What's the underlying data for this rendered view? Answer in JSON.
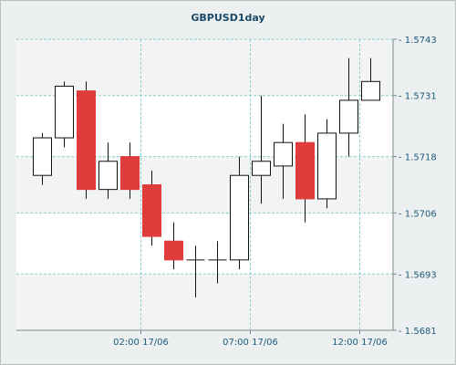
{
  "chart_data": {
    "type": "candlestick",
    "title": "GBPUSD1day",
    "xlabel": "",
    "ylabel": "",
    "ylim": [
      1.5681,
      1.5743
    ],
    "y_ticks": [
      "1.5743",
      "1.5731",
      "1.5718",
      "1.5706",
      "1.5693",
      "1.5681"
    ],
    "x_ticks": [
      {
        "label": "02:00 17/06",
        "index": 4.5
      },
      {
        "label": "07:00 17/06",
        "index": 9.5
      },
      {
        "label": "12:00 17/06",
        "index": 14.5
      }
    ],
    "grid": true,
    "candles": [
      {
        "open": 1.5714,
        "high": 1.5723,
        "low": 1.5712,
        "close": 1.5722
      },
      {
        "open": 1.5722,
        "high": 1.5734,
        "low": 1.572,
        "close": 1.5733
      },
      {
        "open": 1.5732,
        "high": 1.5734,
        "low": 1.5709,
        "close": 1.5711
      },
      {
        "open": 1.5711,
        "high": 1.5721,
        "low": 1.5709,
        "close": 1.5717
      },
      {
        "open": 1.5718,
        "high": 1.5721,
        "low": 1.5709,
        "close": 1.5711
      },
      {
        "open": 1.5712,
        "high": 1.5715,
        "low": 1.5699,
        "close": 1.5701
      },
      {
        "open": 1.57,
        "high": 1.5704,
        "low": 1.5694,
        "close": 1.5696
      },
      {
        "open": 1.5696,
        "high": 1.5699,
        "low": 1.5688,
        "close": 1.5696
      },
      {
        "open": 1.5696,
        "high": 1.57,
        "low": 1.5691,
        "close": 1.5696
      },
      {
        "open": 1.5696,
        "high": 1.5718,
        "low": 1.5694,
        "close": 1.5714
      },
      {
        "open": 1.5714,
        "high": 1.5731,
        "low": 1.5708,
        "close": 1.5717
      },
      {
        "open": 1.5716,
        "high": 1.5725,
        "low": 1.5709,
        "close": 1.5721
      },
      {
        "open": 1.5721,
        "high": 1.5727,
        "low": 1.5704,
        "close": 1.5709
      },
      {
        "open": 1.5709,
        "high": 1.5726,
        "low": 1.5707,
        "close": 1.5723
      },
      {
        "open": 1.5723,
        "high": 1.5739,
        "low": 1.5718,
        "close": 1.573
      },
      {
        "open": 1.573,
        "high": 1.5739,
        "low": 1.573,
        "close": 1.5734
      }
    ],
    "colors": {
      "up_fill": "#ffffff",
      "down_fill": "#e03c3c",
      "outline": "#111111",
      "grid": "#8ecece",
      "plot_bg": "#ffffff",
      "band_bg": "#f2f4f4",
      "tick_text": "#1a5a7a",
      "title_text": "#1a4a6a"
    }
  }
}
